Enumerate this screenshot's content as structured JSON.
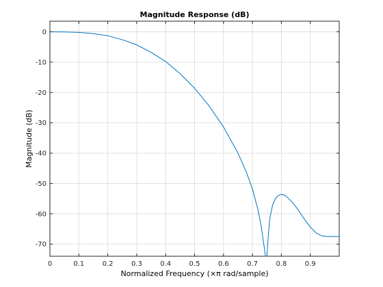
{
  "chart_data": {
    "type": "line",
    "title": "Magnitude Response (dB)",
    "xlabel": "Normalized Frequency (×π rad/sample)",
    "ylabel": "Magnitude (dB)",
    "xlim": [
      0,
      1
    ],
    "ylim": [
      -74,
      3.5
    ],
    "xticks": [
      0,
      0.1,
      0.2,
      0.3,
      0.4,
      0.5,
      0.6,
      0.7,
      0.8,
      0.9
    ],
    "xtick_labels": [
      "0",
      "0.1",
      "0.2",
      "0.3",
      "0.4",
      "0.5",
      "0.6",
      "0.7",
      "0.8",
      "0.9"
    ],
    "yticks": [
      0,
      -10,
      -20,
      -30,
      -40,
      -50,
      -60,
      -70
    ],
    "ytick_labels": [
      "0",
      "-10",
      "-20",
      "-30",
      "-40",
      "-50",
      "-60",
      "-70"
    ],
    "grid": true,
    "line_color": "#0072BD",
    "series": [
      {
        "x": [
          0,
          0.05,
          0.1,
          0.15,
          0.2,
          0.25,
          0.3,
          0.35,
          0.4,
          0.45,
          0.5,
          0.55,
          0.6,
          0.65,
          0.68,
          0.7,
          0.72,
          0.73,
          0.74,
          0.745,
          0.75,
          0.755,
          0.76,
          0.77,
          0.78,
          0.79,
          0.8,
          0.81,
          0.82,
          0.84,
          0.86,
          0.88,
          0.9,
          0.92,
          0.94,
          0.96,
          0.98,
          1.0
        ],
        "y": [
          0,
          -0.05,
          -0.2,
          -0.6,
          -1.3,
          -2.6,
          -4.3,
          -6.8,
          -9.8,
          -13.8,
          -18.6,
          -24.4,
          -31.4,
          -40.0,
          -46.5,
          -51.8,
          -59.0,
          -64.0,
          -70.5,
          -74.5,
          -74.5,
          -67.0,
          -61.5,
          -57.0,
          -54.9,
          -53.9,
          -53.6,
          -53.8,
          -54.5,
          -56.4,
          -59.0,
          -61.8,
          -64.4,
          -66.3,
          -67.3,
          -67.5,
          -67.5,
          -67.5
        ]
      }
    ]
  }
}
